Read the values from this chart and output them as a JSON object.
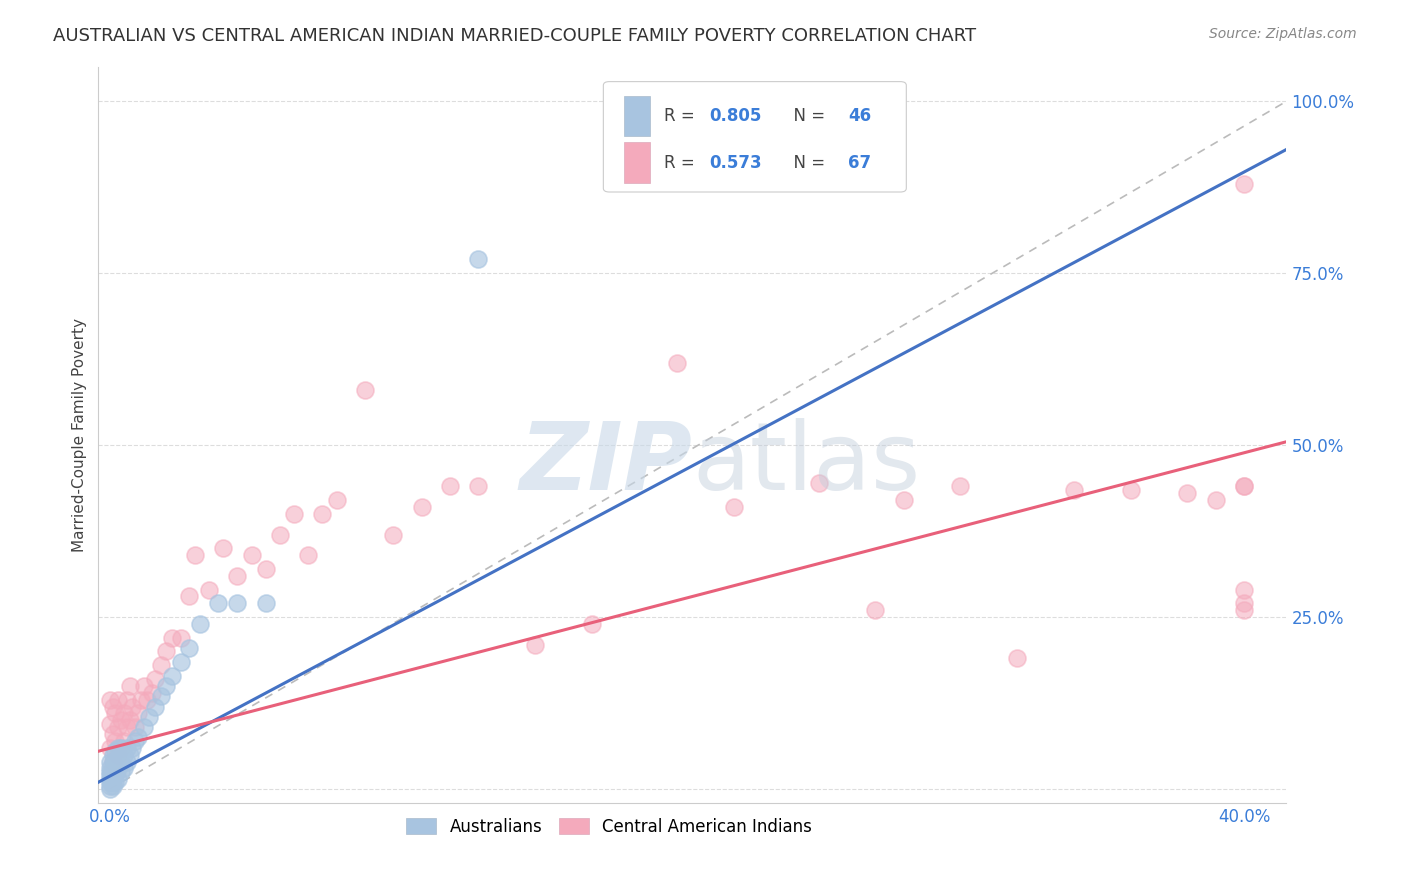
{
  "title": "AUSTRALIAN VS CENTRAL AMERICAN INDIAN MARRIED-COUPLE FAMILY POVERTY CORRELATION CHART",
  "source": "Source: ZipAtlas.com",
  "ylabel": "Married-Couple Family Poverty",
  "blue_R": 0.805,
  "blue_N": 46,
  "pink_R": 0.573,
  "pink_N": 67,
  "blue_color": "#A8C4E0",
  "pink_color": "#F4AABC",
  "blue_line_color": "#4472C4",
  "pink_line_color": "#E8607A",
  "ref_line_color": "#BBBBBB",
  "background_color": "#FFFFFF",
  "blue_scatter_x": [
    0.0,
    0.0,
    0.0,
    0.0,
    0.0,
    0.0,
    0.0,
    0.0,
    0.001,
    0.001,
    0.001,
    0.001,
    0.001,
    0.001,
    0.002,
    0.002,
    0.002,
    0.002,
    0.003,
    0.003,
    0.003,
    0.003,
    0.004,
    0.004,
    0.004,
    0.005,
    0.005,
    0.006,
    0.006,
    0.007,
    0.008,
    0.009,
    0.01,
    0.012,
    0.014,
    0.016,
    0.018,
    0.02,
    0.022,
    0.025,
    0.028,
    0.032,
    0.038,
    0.045,
    0.055,
    0.13
  ],
  "blue_scatter_y": [
    0.0,
    0.005,
    0.01,
    0.015,
    0.02,
    0.025,
    0.03,
    0.04,
    0.005,
    0.01,
    0.02,
    0.03,
    0.04,
    0.05,
    0.01,
    0.02,
    0.035,
    0.055,
    0.015,
    0.03,
    0.045,
    0.06,
    0.025,
    0.04,
    0.06,
    0.03,
    0.05,
    0.04,
    0.06,
    0.05,
    0.06,
    0.07,
    0.075,
    0.09,
    0.105,
    0.12,
    0.135,
    0.15,
    0.165,
    0.185,
    0.205,
    0.24,
    0.27,
    0.27,
    0.27,
    0.77
  ],
  "pink_scatter_x": [
    0.0,
    0.0,
    0.0,
    0.001,
    0.001,
    0.001,
    0.002,
    0.002,
    0.003,
    0.003,
    0.003,
    0.004,
    0.004,
    0.005,
    0.005,
    0.006,
    0.006,
    0.007,
    0.007,
    0.008,
    0.009,
    0.01,
    0.011,
    0.012,
    0.013,
    0.015,
    0.016,
    0.018,
    0.02,
    0.022,
    0.025,
    0.028,
    0.03,
    0.035,
    0.04,
    0.045,
    0.05,
    0.055,
    0.06,
    0.065,
    0.07,
    0.075,
    0.08,
    0.09,
    0.1,
    0.11,
    0.12,
    0.13,
    0.15,
    0.17,
    0.2,
    0.22,
    0.25,
    0.27,
    0.28,
    0.3,
    0.32,
    0.34,
    0.36,
    0.38,
    0.39,
    0.4,
    0.4,
    0.4,
    0.4,
    0.4,
    0.4
  ],
  "pink_scatter_y": [
    0.06,
    0.095,
    0.13,
    0.04,
    0.08,
    0.12,
    0.07,
    0.11,
    0.05,
    0.09,
    0.13,
    0.06,
    0.1,
    0.07,
    0.11,
    0.09,
    0.13,
    0.1,
    0.15,
    0.12,
    0.09,
    0.11,
    0.13,
    0.15,
    0.13,
    0.14,
    0.16,
    0.18,
    0.2,
    0.22,
    0.22,
    0.28,
    0.34,
    0.29,
    0.35,
    0.31,
    0.34,
    0.32,
    0.37,
    0.4,
    0.34,
    0.4,
    0.42,
    0.58,
    0.37,
    0.41,
    0.44,
    0.44,
    0.21,
    0.24,
    0.62,
    0.41,
    0.445,
    0.26,
    0.42,
    0.44,
    0.19,
    0.435,
    0.435,
    0.43,
    0.42,
    0.27,
    0.44,
    0.44,
    0.29,
    0.26,
    0.88
  ],
  "xmin": -0.004,
  "xmax": 0.415,
  "ymin": -0.02,
  "ymax": 1.05,
  "blue_line_x0": -0.004,
  "blue_line_x1": 0.415,
  "blue_line_y0": 0.01,
  "blue_line_y1": 0.93,
  "pink_line_x0": -0.004,
  "pink_line_x1": 0.415,
  "pink_line_y0": 0.055,
  "pink_line_y1": 0.505,
  "ref_line_x0": 0.0,
  "ref_line_x1": 0.415,
  "ref_line_y0": 0.0,
  "ref_line_y1": 1.0,
  "grid_color": "#DDDDDD",
  "title_fontsize": 13,
  "axis_label_color": "#3B7DD8",
  "tick_color": "#3B7DD8",
  "legend_color_text": "#3B7DD8",
  "legend_text_color": "#555555",
  "watermark_zip_color": "#C8D8E8",
  "watermark_atlas_color": "#C0CCDA"
}
